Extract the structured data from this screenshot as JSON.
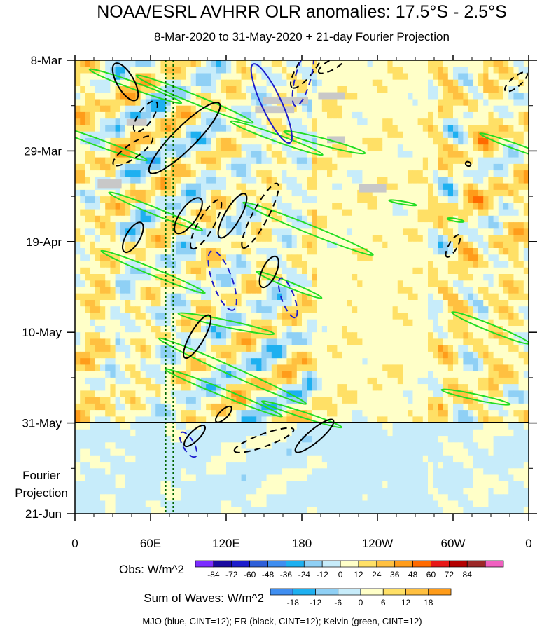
{
  "chart_data": {
    "type": "heatmap",
    "title": "NOAA/ESRL AVHRR OLR anomalies: 17.5°S - 2.5°S",
    "subtitle": "8-Mar-2020 to 31-May-2020 + 21-day Fourier Projection",
    "x_axis": {
      "ticks": [
        "0",
        "60E",
        "120E",
        "180",
        "120W",
        "60W",
        "0"
      ],
      "tick_values_deg_east": [
        0,
        60,
        120,
        180,
        240,
        300,
        360
      ],
      "xlim": [
        0,
        360
      ]
    },
    "y_axis": {
      "ticks": [
        "8-Mar",
        "29-Mar",
        "19-Apr",
        "10-May",
        "31-May",
        "21-Jun"
      ],
      "tick_values_days_from_8_Mar": [
        0,
        21,
        42,
        63,
        84,
        105
      ],
      "ylim": [
        0,
        105
      ],
      "direction": "time increases downward"
    },
    "projection_label": [
      "Fourier",
      "Projection"
    ],
    "projection_start": "31-May",
    "obs_colorbar": {
      "label": "Obs: W/m^2",
      "levels": [
        "-84",
        "-72",
        "-60",
        "-48",
        "-36",
        "-24",
        "-12",
        "0",
        "12",
        "24",
        "36",
        "48",
        "60",
        "72",
        "84"
      ],
      "colors": [
        "#7b2cff",
        "#1a0aa0",
        "#1c1ccc",
        "#2e5fd8",
        "#3f8ef0",
        "#1eb0f0",
        "#8fd0f5",
        "#c7ecfa",
        "#ffffc8",
        "#ffe066",
        "#ffc040",
        "#ff9c1a",
        "#ff6a00",
        "#e81818",
        "#b40000",
        "#9c2828",
        "#f060c0"
      ]
    },
    "waves_colorbar": {
      "label": "Sum of Waves: W/m^2",
      "levels": [
        "-18",
        "-12",
        "-6",
        "0",
        "6",
        "12",
        "18"
      ],
      "colors": [
        "#3f8ef0",
        "#1eb0f0",
        "#8fd0f5",
        "#c7ecfa",
        "#ffffc8",
        "#ffe066",
        "#ffc040",
        "#ff9c1a"
      ]
    },
    "contour_legend": "MJO (blue, CINT=12); ER (black, CINT=12); Kelvin (green, CINT=12)",
    "contour_colors": {
      "MJO": "#1c1ccc",
      "ER": "#000000",
      "Kelvin": "#22dd22"
    },
    "reference_lines_lon": [
      72,
      78
    ],
    "reference_line_color": "#006400",
    "missing_data_color": "#c8c8c8"
  }
}
